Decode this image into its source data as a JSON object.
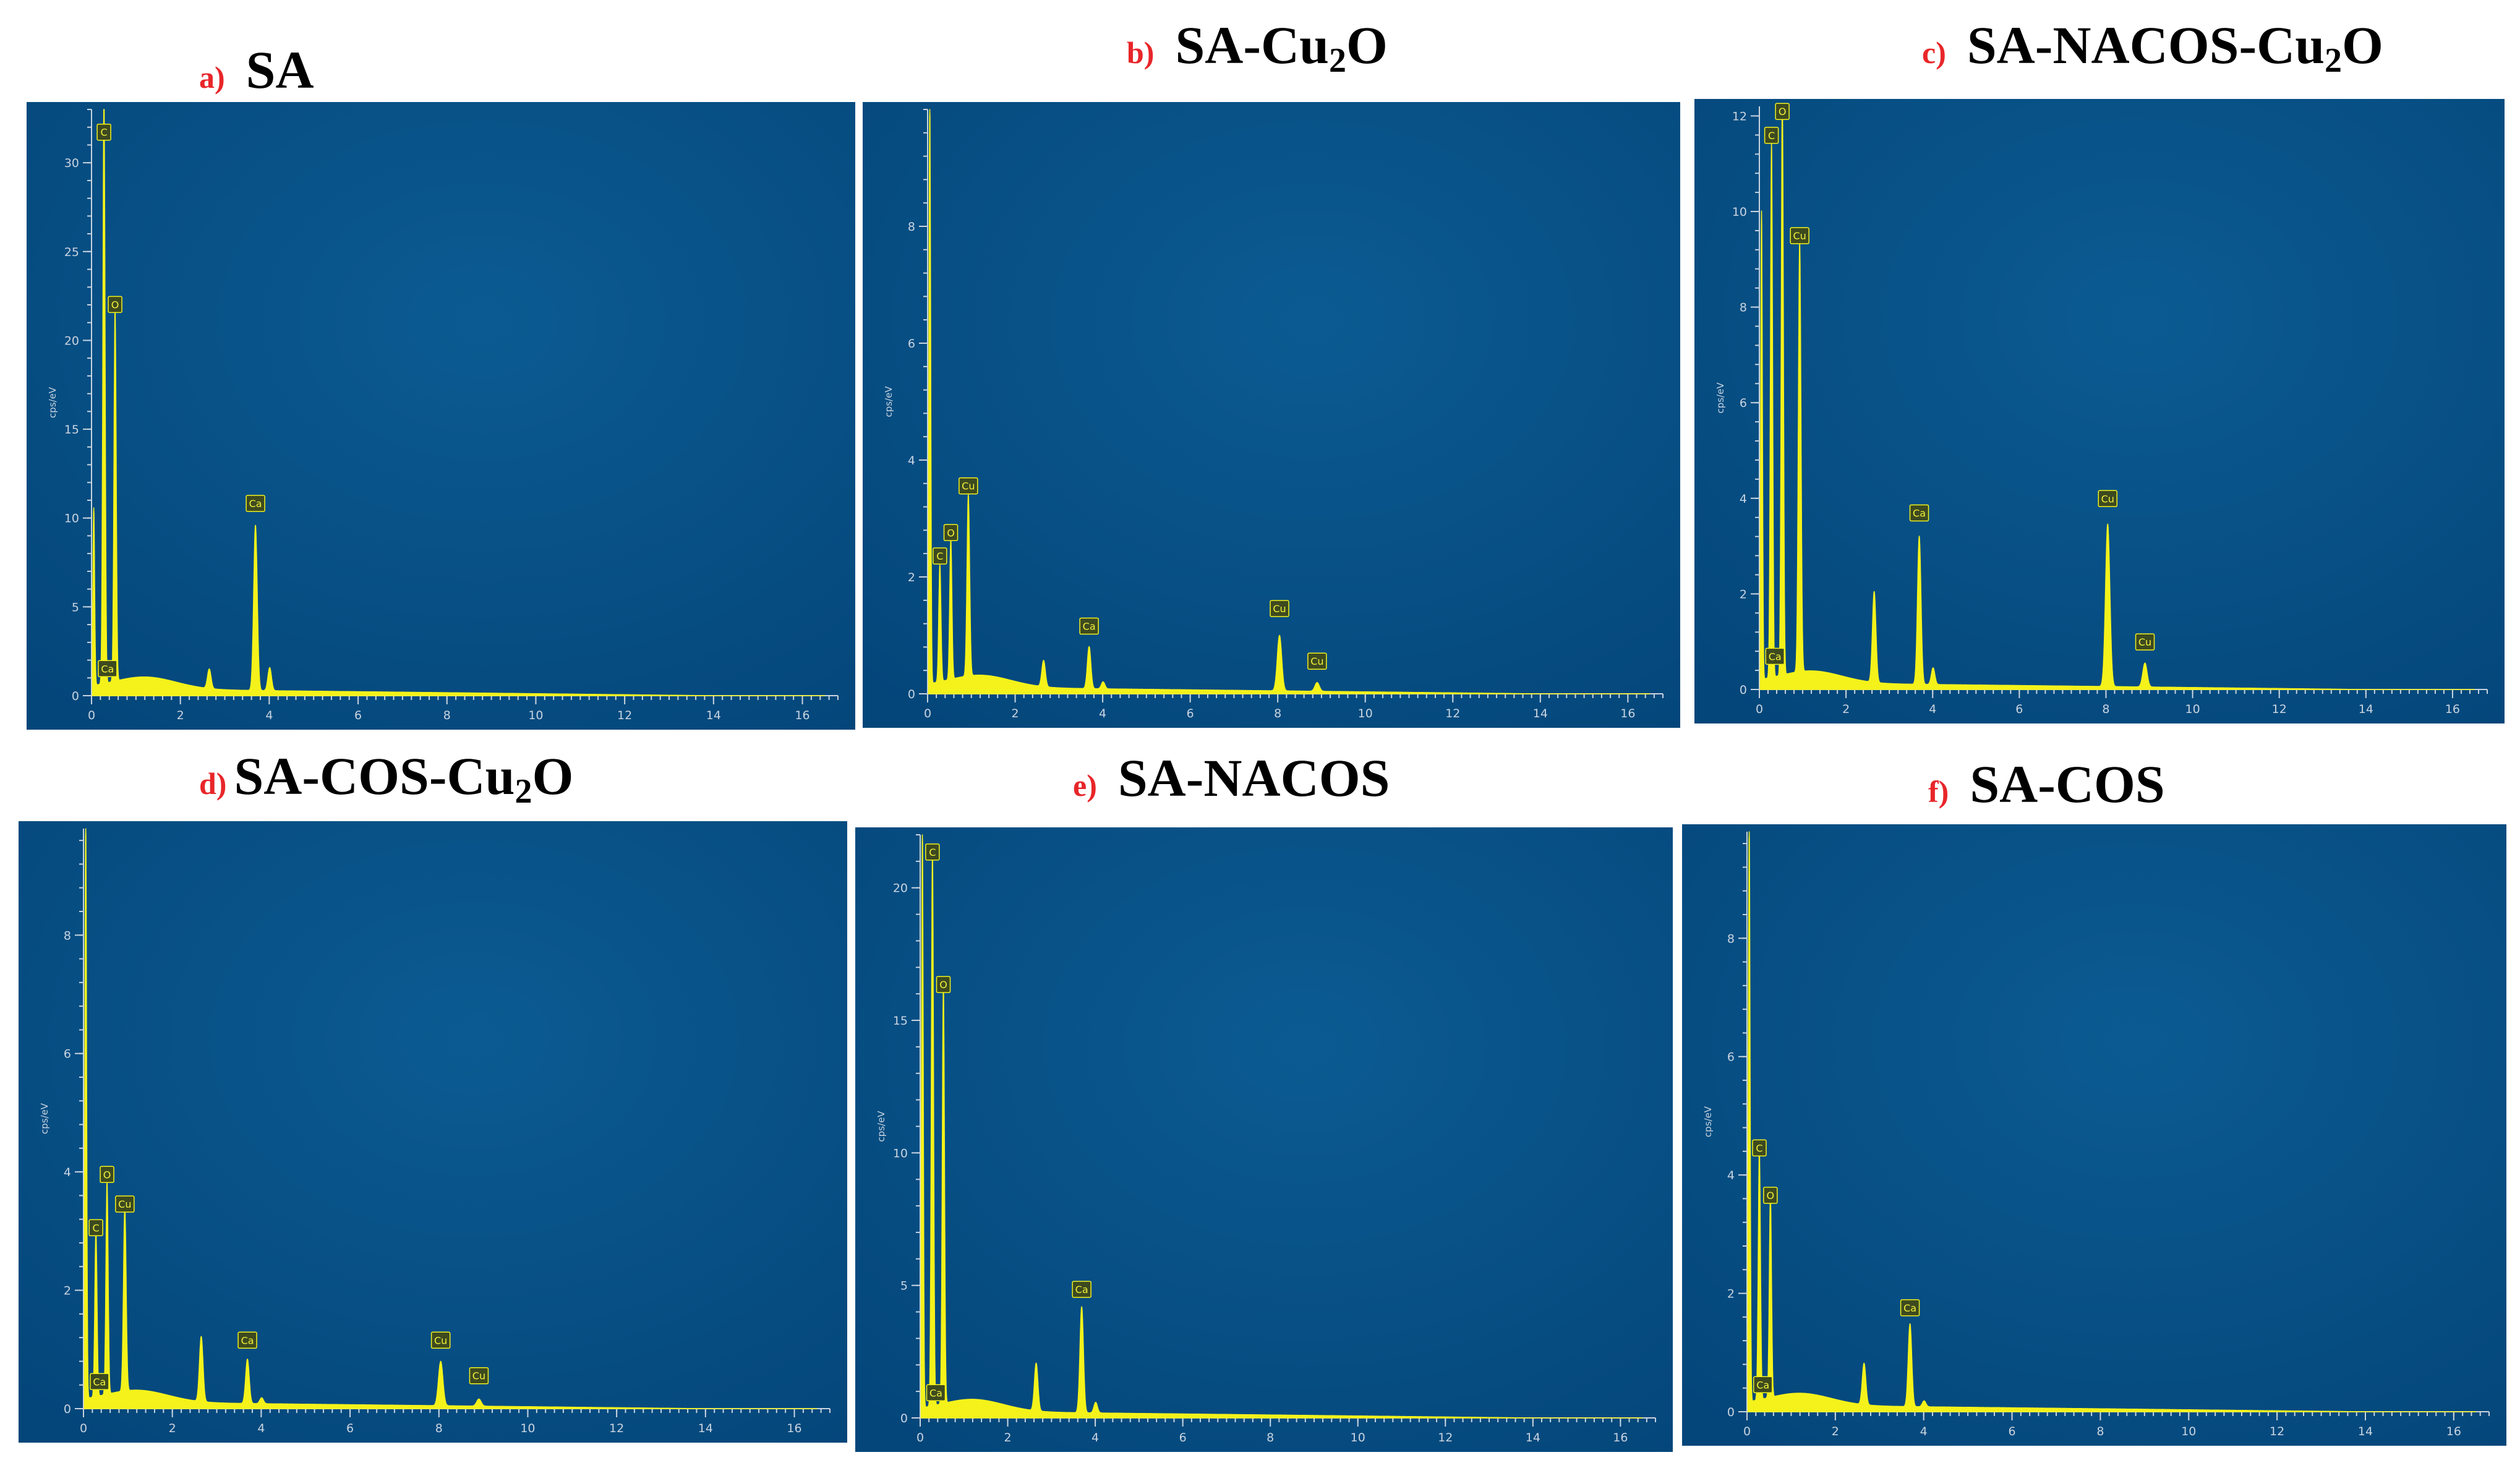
{
  "figure": {
    "colors": {
      "plot_bg": "#04467a",
      "spectrum": "#f4f21a",
      "axis": "#c8d4e0",
      "letter": "#e8262a"
    }
  },
  "chart_data": [
    {
      "type": "line",
      "letter": "a)",
      "name_parts": [
        "SA"
      ],
      "ylabel": "cps/eV",
      "xlim": [
        0,
        16.8
      ],
      "ylim": [
        0,
        33
      ],
      "yticks": [
        0,
        5,
        10,
        15,
        20,
        25,
        30
      ],
      "xticks": [
        0,
        2,
        4,
        6,
        8,
        10,
        12,
        14,
        16
      ],
      "peaks": [
        {
          "x": 0.05,
          "y": 10,
          "w": 0.02
        },
        {
          "x": 0.28,
          "y": 33,
          "w": 0.025
        },
        {
          "x": 0.53,
          "y": 21,
          "w": 0.025
        },
        {
          "x": 2.65,
          "y": 1.1,
          "w": 0.04
        },
        {
          "x": 3.69,
          "y": 9.3,
          "w": 0.04
        },
        {
          "x": 4.01,
          "y": 1.3,
          "w": 0.04
        }
      ],
      "annotations": [
        {
          "label": "C",
          "x": 0.28,
          "y": 31.2
        },
        {
          "label": "O",
          "x": 0.53,
          "y": 21.5
        },
        {
          "label": "Ca",
          "x": 3.69,
          "y": 10.3
        },
        {
          "label": "Ca",
          "x": 0.36,
          "y": 1.0
        }
      ]
    },
    {
      "type": "line",
      "letter": "b)",
      "name_parts": [
        "SA-Cu",
        "2",
        "O"
      ],
      "ylabel": "cps/eV",
      "xlim": [
        0,
        16.8
      ],
      "ylim": [
        0,
        10
      ],
      "yticks": [
        0,
        2,
        4,
        6,
        8
      ],
      "xticks": [
        0,
        2,
        4,
        6,
        8,
        10,
        12,
        14,
        16
      ],
      "peaks": [
        {
          "x": 0.05,
          "y": 10,
          "w": 0.02
        },
        {
          "x": 0.28,
          "y": 2.0,
          "w": 0.025
        },
        {
          "x": 0.53,
          "y": 2.4,
          "w": 0.025
        },
        {
          "x": 0.93,
          "y": 3.1,
          "w": 0.03
        },
        {
          "x": 2.65,
          "y": 0.45,
          "w": 0.04
        },
        {
          "x": 3.69,
          "y": 0.72,
          "w": 0.04
        },
        {
          "x": 4.01,
          "y": 0.12,
          "w": 0.04
        },
        {
          "x": 8.04,
          "y": 0.95,
          "w": 0.05
        },
        {
          "x": 8.9,
          "y": 0.15,
          "w": 0.05
        }
      ],
      "annotations": [
        {
          "label": "C",
          "x": 0.28,
          "y": 2.2
        },
        {
          "label": "O",
          "x": 0.53,
          "y": 2.6
        },
        {
          "label": "Cu",
          "x": 0.93,
          "y": 3.4
        },
        {
          "label": "Ca",
          "x": 3.69,
          "y": 1.0
        },
        {
          "label": "Cu",
          "x": 8.04,
          "y": 1.3
        },
        {
          "label": "Cu",
          "x": 8.9,
          "y": 0.4
        }
      ]
    },
    {
      "type": "line",
      "letter": "c)",
      "name_parts": [
        "SA-NACOS-Cu",
        "2",
        "O"
      ],
      "ylabel": "cps/eV",
      "xlim": [
        0,
        16.8
      ],
      "ylim": [
        0,
        12.2
      ],
      "yticks": [
        0,
        2,
        4,
        6,
        8,
        10,
        12
      ],
      "xticks": [
        0,
        2,
        4,
        6,
        8,
        10,
        12,
        14,
        16
      ],
      "peaks": [
        {
          "x": 0.05,
          "y": 9.8,
          "w": 0.02
        },
        {
          "x": 0.28,
          "y": 11.2,
          "w": 0.025
        },
        {
          "x": 0.53,
          "y": 12.2,
          "w": 0.025
        },
        {
          "x": 0.93,
          "y": 9.0,
          "w": 0.03
        },
        {
          "x": 2.65,
          "y": 1.9,
          "w": 0.04
        },
        {
          "x": 3.69,
          "y": 3.1,
          "w": 0.04
        },
        {
          "x": 4.01,
          "y": 0.35,
          "w": 0.04
        },
        {
          "x": 8.04,
          "y": 3.4,
          "w": 0.05
        },
        {
          "x": 8.9,
          "y": 0.5,
          "w": 0.05
        }
      ],
      "annotations": [
        {
          "label": "C",
          "x": 0.28,
          "y": 11.4
        },
        {
          "label": "O",
          "x": 0.53,
          "y": 11.9
        },
        {
          "label": "Cu",
          "x": 0.93,
          "y": 9.3
        },
        {
          "label": "Ca",
          "x": 3.69,
          "y": 3.5
        },
        {
          "label": "Cu",
          "x": 8.04,
          "y": 3.8
        },
        {
          "label": "Cu",
          "x": 8.9,
          "y": 0.8
        },
        {
          "label": "Ca",
          "x": 0.36,
          "y": 0.5
        }
      ]
    },
    {
      "type": "line",
      "letter": "d)",
      "name_parts": [
        "SA-COS-Cu",
        "2",
        "O"
      ],
      "ylabel": "cps/eV",
      "xlim": [
        0,
        16.8
      ],
      "ylim": [
        0,
        9.8
      ],
      "yticks": [
        0,
        2,
        4,
        6,
        8
      ],
      "xticks": [
        0,
        2,
        4,
        6,
        8,
        10,
        12,
        14,
        16
      ],
      "peaks": [
        {
          "x": 0.05,
          "y": 9.8,
          "w": 0.02
        },
        {
          "x": 0.28,
          "y": 2.8,
          "w": 0.025
        },
        {
          "x": 0.53,
          "y": 3.6,
          "w": 0.025
        },
        {
          "x": 0.93,
          "y": 3.1,
          "w": 0.03
        },
        {
          "x": 2.65,
          "y": 1.1,
          "w": 0.04
        },
        {
          "x": 3.69,
          "y": 0.75,
          "w": 0.04
        },
        {
          "x": 4.01,
          "y": 0.1,
          "w": 0.04
        },
        {
          "x": 8.04,
          "y": 0.75,
          "w": 0.05
        },
        {
          "x": 8.9,
          "y": 0.12,
          "w": 0.05
        }
      ],
      "annotations": [
        {
          "label": "C",
          "x": 0.28,
          "y": 2.9
        },
        {
          "label": "O",
          "x": 0.53,
          "y": 3.8
        },
        {
          "label": "Cu",
          "x": 0.93,
          "y": 3.3
        },
        {
          "label": "Ca",
          "x": 3.69,
          "y": 1.0
        },
        {
          "label": "Cu",
          "x": 8.04,
          "y": 1.0
        },
        {
          "label": "Cu",
          "x": 8.9,
          "y": 0.4
        },
        {
          "label": "Ca",
          "x": 0.36,
          "y": 0.3
        }
      ]
    },
    {
      "type": "line",
      "letter": "e)",
      "name_parts": [
        "SA-NACOS"
      ],
      "ylabel": "cps/eV",
      "xlim": [
        0,
        16.8
      ],
      "ylim": [
        0,
        22
      ],
      "yticks": [
        0,
        5,
        10,
        15,
        20
      ],
      "xticks": [
        0,
        2,
        4,
        6,
        8,
        10,
        12,
        14,
        16
      ],
      "peaks": [
        {
          "x": 0.05,
          "y": 22,
          "w": 0.02
        },
        {
          "x": 0.28,
          "y": 21,
          "w": 0.025
        },
        {
          "x": 0.53,
          "y": 15.8,
          "w": 0.025
        },
        {
          "x": 2.65,
          "y": 1.8,
          "w": 0.04
        },
        {
          "x": 3.69,
          "y": 4.0,
          "w": 0.04
        },
        {
          "x": 4.01,
          "y": 0.4,
          "w": 0.04
        }
      ],
      "annotations": [
        {
          "label": "C",
          "x": 0.28,
          "y": 21.0
        },
        {
          "label": "O",
          "x": 0.53,
          "y": 16.0
        },
        {
          "label": "Ca",
          "x": 3.69,
          "y": 4.5
        },
        {
          "label": "Ca",
          "x": 0.36,
          "y": 0.6
        }
      ]
    },
    {
      "type": "line",
      "letter": "f)",
      "name_parts": [
        "SA-COS"
      ],
      "ylabel": "cps/eV",
      "xlim": [
        0,
        16.8
      ],
      "ylim": [
        0,
        9.8
      ],
      "yticks": [
        0,
        2,
        4,
        6,
        8
      ],
      "xticks": [
        0,
        2,
        4,
        6,
        8,
        10,
        12,
        14,
        16
      ],
      "peaks": [
        {
          "x": 0.05,
          "y": 9.8,
          "w": 0.02
        },
        {
          "x": 0.28,
          "y": 4.2,
          "w": 0.025
        },
        {
          "x": 0.53,
          "y": 3.4,
          "w": 0.025
        },
        {
          "x": 2.65,
          "y": 0.7,
          "w": 0.04
        },
        {
          "x": 3.69,
          "y": 1.4,
          "w": 0.04
        },
        {
          "x": 4.01,
          "y": 0.1,
          "w": 0.04
        }
      ],
      "annotations": [
        {
          "label": "C",
          "x": 0.28,
          "y": 4.3
        },
        {
          "label": "O",
          "x": 0.53,
          "y": 3.5
        },
        {
          "label": "Ca",
          "x": 3.69,
          "y": 1.6
        },
        {
          "label": "Ca",
          "x": 0.36,
          "y": 0.3
        }
      ]
    }
  ]
}
